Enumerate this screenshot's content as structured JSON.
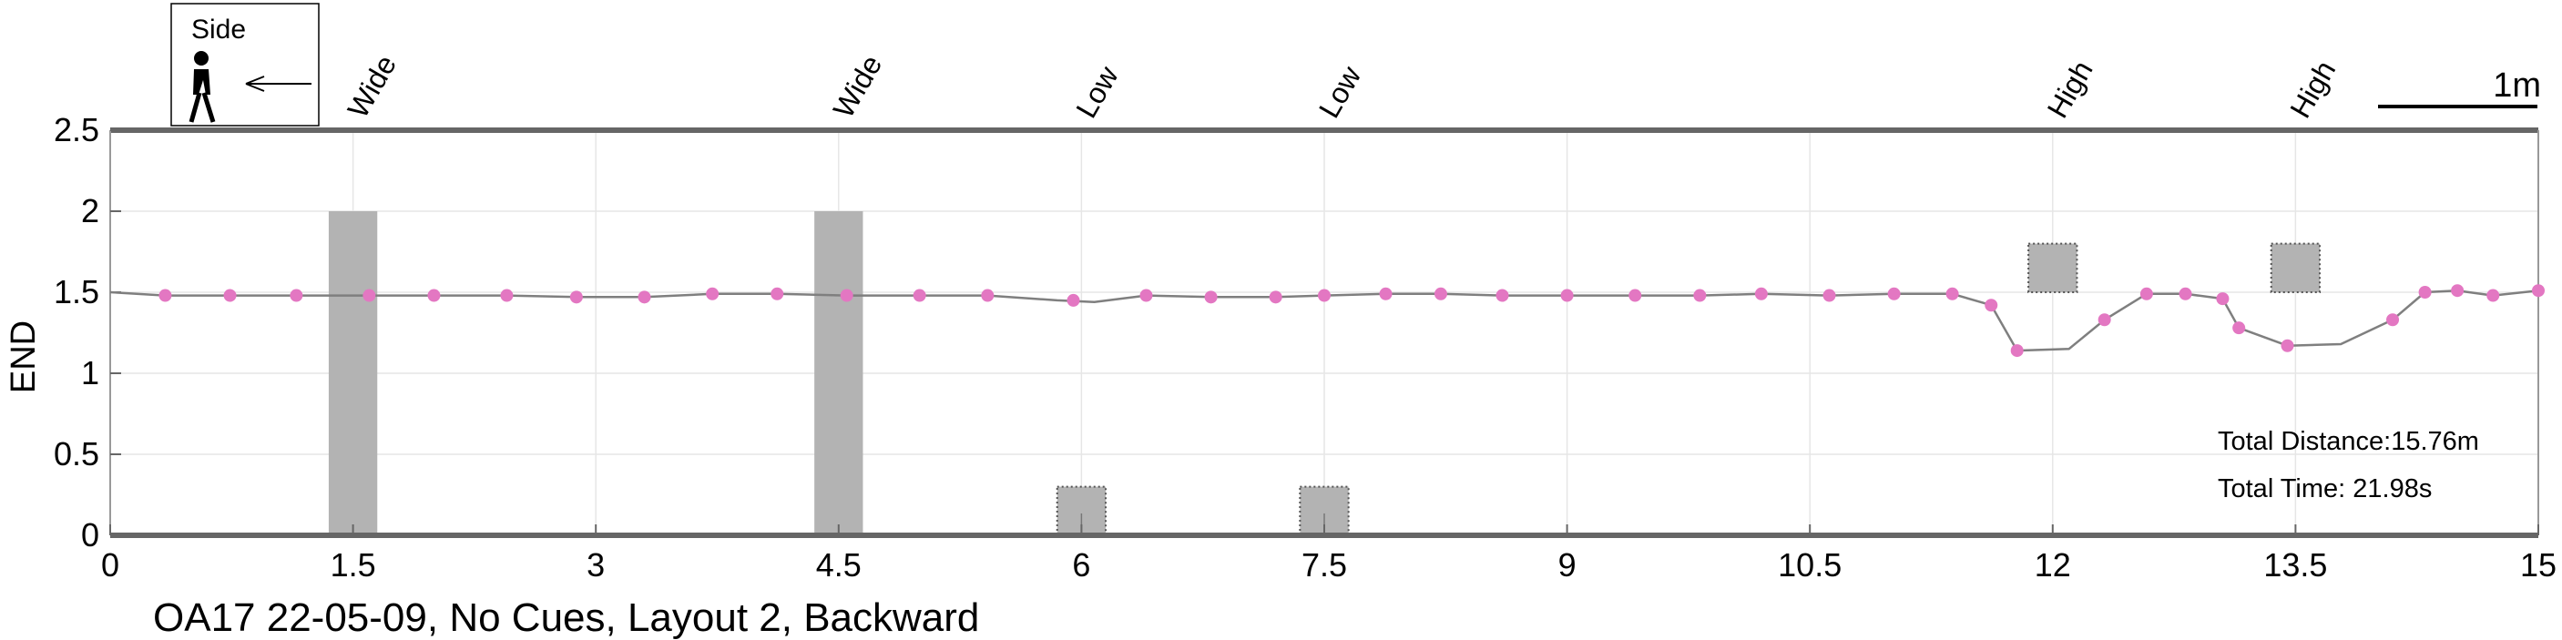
{
  "chart_data": {
    "type": "line",
    "ylabel": "END",
    "xlim": [
      0,
      15
    ],
    "ylim": [
      0,
      2.5
    ],
    "xticks": [
      "0",
      "1.5",
      "3",
      "4.5",
      "6",
      "7.5",
      "9",
      "10.5",
      "12",
      "13.5",
      "15"
    ],
    "yticks": [
      "0",
      "0.5",
      "1",
      "1.5",
      "2",
      "2.5"
    ],
    "grid": true,
    "series": [
      {
        "line_color": "#7f7f7f",
        "marker_color": "#e377c2",
        "x": [
          0.0,
          0.34,
          0.74,
          1.15,
          1.6,
          2.0,
          2.45,
          2.88,
          3.3,
          3.72,
          4.12,
          4.55,
          5.0,
          5.42,
          5.85,
          6.08,
          6.4,
          6.8,
          7.2,
          7.5,
          7.88,
          8.22,
          8.6,
          9.0,
          9.42,
          9.82,
          10.2,
          10.62,
          11.02,
          11.38,
          11.62,
          11.78,
          12.1,
          12.32,
          12.58,
          12.82,
          13.05,
          13.15,
          13.45,
          13.78,
          14.1,
          14.3,
          14.5,
          14.72,
          15.0
        ],
        "y": [
          1.5,
          1.48,
          1.48,
          1.48,
          1.48,
          1.48,
          1.48,
          1.47,
          1.47,
          1.49,
          1.49,
          1.48,
          1.48,
          1.48,
          1.45,
          1.44,
          1.48,
          1.47,
          1.47,
          1.48,
          1.49,
          1.49,
          1.48,
          1.48,
          1.48,
          1.48,
          1.49,
          1.48,
          1.49,
          1.49,
          1.42,
          1.14,
          1.15,
          1.33,
          1.49,
          1.49,
          1.46,
          1.28,
          1.17,
          1.18,
          1.33,
          1.5,
          1.51,
          1.48,
          1.51
        ],
        "markers_x": [
          0.34,
          0.74,
          1.15,
          1.6,
          2.0,
          2.45,
          2.88,
          3.3,
          3.72,
          4.12,
          4.55,
          5.0,
          5.42,
          5.95,
          6.4,
          6.8,
          7.2,
          7.5,
          7.88,
          8.22,
          8.6,
          9.0,
          9.42,
          9.82,
          10.2,
          10.62,
          11.02,
          11.38,
          11.62,
          11.78,
          12.32,
          12.58,
          12.82,
          13.05,
          13.15,
          13.45,
          14.1,
          14.3,
          14.5,
          14.72,
          15.0
        ],
        "markers_y": [
          1.48,
          1.48,
          1.48,
          1.48,
          1.48,
          1.48,
          1.47,
          1.47,
          1.49,
          1.49,
          1.48,
          1.48,
          1.48,
          1.45,
          1.48,
          1.47,
          1.47,
          1.48,
          1.49,
          1.49,
          1.48,
          1.48,
          1.48,
          1.48,
          1.49,
          1.48,
          1.49,
          1.49,
          1.42,
          1.14,
          1.33,
          1.49,
          1.49,
          1.46,
          1.28,
          1.17,
          1.33,
          1.5,
          1.51,
          1.48,
          1.51
        ]
      }
    ],
    "obstacles": [
      {
        "label": "Wide",
        "x0": 1.35,
        "x1": 1.65,
        "y0": 0.0,
        "y1": 2.0,
        "style": "solid"
      },
      {
        "label": "Wide",
        "x0": 4.35,
        "x1": 4.65,
        "y0": 0.0,
        "y1": 2.0,
        "style": "solid"
      },
      {
        "label": "Low",
        "x0": 5.85,
        "x1": 6.15,
        "y0": 0.0,
        "y1": 0.3,
        "style": "dotted"
      },
      {
        "label": "Low",
        "x0": 7.35,
        "x1": 7.65,
        "y0": 0.0,
        "y1": 0.3,
        "style": "dotted"
      },
      {
        "label": "High",
        "x0": 11.85,
        "x1": 12.15,
        "y0": 1.5,
        "y1": 1.8,
        "style": "dotted"
      },
      {
        "label": "High",
        "x0": 13.35,
        "x1": 13.65,
        "y0": 1.5,
        "y1": 1.8,
        "style": "dotted"
      }
    ],
    "colors": {
      "obstacle_fill": "#b3b3b3",
      "axis": "#666666",
      "grid": "#e6e6e6"
    }
  },
  "annotations": {
    "total_distance": "Total Distance:15.76m",
    "total_time": "Total Time: 21.98s",
    "caption": "OA17 22-05-09, No Cues, Layout 2, Backward",
    "legend_box_label": "Side",
    "scale_label": "1m"
  }
}
